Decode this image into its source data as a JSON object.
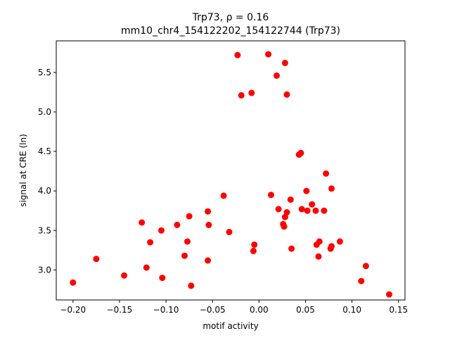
{
  "chart_data": {
    "type": "scatter",
    "title_line1": "Trp73, ρ = 0.16",
    "title_line2": "mm10_chr4_154122202_154122744 (Trp73)",
    "xlabel": "motif activity",
    "ylabel": "signal at CRE (ln)",
    "xlim": [
      -0.218,
      0.157
    ],
    "ylim": [
      2.62,
      5.9
    ],
    "xticks": [
      -0.2,
      -0.15,
      -0.1,
      -0.05,
      0.0,
      0.05,
      0.1,
      0.15
    ],
    "xtick_labels": [
      "−0.20",
      "−0.15",
      "−0.10",
      "−0.05",
      "0.00",
      "0.05",
      "0.10",
      "0.15"
    ],
    "yticks": [
      3.0,
      3.5,
      4.0,
      4.5,
      5.0,
      5.5
    ],
    "ytick_labels": [
      "3.0",
      "3.5",
      "4.0",
      "4.5",
      "5.0",
      "5.5"
    ],
    "marker_color": "#ff0000",
    "grid": false,
    "points": [
      {
        "x": -0.2,
        "y": 2.84
      },
      {
        "x": -0.175,
        "y": 3.14
      },
      {
        "x": -0.145,
        "y": 2.93
      },
      {
        "x": -0.126,
        "y": 3.6
      },
      {
        "x": -0.121,
        "y": 3.03
      },
      {
        "x": -0.117,
        "y": 3.35
      },
      {
        "x": -0.105,
        "y": 3.5
      },
      {
        "x": -0.104,
        "y": 2.9
      },
      {
        "x": -0.088,
        "y": 3.57
      },
      {
        "x": -0.08,
        "y": 3.18
      },
      {
        "x": -0.077,
        "y": 3.36
      },
      {
        "x": -0.075,
        "y": 3.68
      },
      {
        "x": -0.073,
        "y": 2.8
      },
      {
        "x": -0.055,
        "y": 3.74
      },
      {
        "x": -0.054,
        "y": 3.57
      },
      {
        "x": -0.055,
        "y": 3.12
      },
      {
        "x": -0.038,
        "y": 3.94
      },
      {
        "x": -0.032,
        "y": 3.48
      },
      {
        "x": -0.023,
        "y": 5.72
      },
      {
        "x": -0.019,
        "y": 5.21
      },
      {
        "x": -0.008,
        "y": 5.24
      },
      {
        "x": -0.006,
        "y": 3.24
      },
      {
        "x": -0.005,
        "y": 3.32
      },
      {
        "x": 0.01,
        "y": 5.73
      },
      {
        "x": 0.013,
        "y": 3.95
      },
      {
        "x": 0.019,
        "y": 5.46
      },
      {
        "x": 0.021,
        "y": 3.77
      },
      {
        "x": 0.026,
        "y": 3.58
      },
      {
        "x": 0.027,
        "y": 3.55
      },
      {
        "x": 0.028,
        "y": 5.62
      },
      {
        "x": 0.028,
        "y": 3.67
      },
      {
        "x": 0.03,
        "y": 3.73
      },
      {
        "x": 0.03,
        "y": 5.22
      },
      {
        "x": 0.034,
        "y": 3.89
      },
      {
        "x": 0.035,
        "y": 3.27
      },
      {
        "x": 0.043,
        "y": 4.46
      },
      {
        "x": 0.045,
        "y": 4.48
      },
      {
        "x": 0.046,
        "y": 3.77
      },
      {
        "x": 0.051,
        "y": 4.0
      },
      {
        "x": 0.052,
        "y": 3.75
      },
      {
        "x": 0.057,
        "y": 3.83
      },
      {
        "x": 0.061,
        "y": 3.75
      },
      {
        "x": 0.062,
        "y": 3.32
      },
      {
        "x": 0.064,
        "y": 3.17
      },
      {
        "x": 0.065,
        "y": 3.36
      },
      {
        "x": 0.07,
        "y": 3.75
      },
      {
        "x": 0.072,
        "y": 4.22
      },
      {
        "x": 0.077,
        "y": 3.27
      },
      {
        "x": 0.078,
        "y": 4.03
      },
      {
        "x": 0.078,
        "y": 3.3
      },
      {
        "x": 0.087,
        "y": 3.36
      },
      {
        "x": 0.11,
        "y": 2.86
      },
      {
        "x": 0.115,
        "y": 3.05
      },
      {
        "x": 0.14,
        "y": 2.69
      }
    ]
  }
}
